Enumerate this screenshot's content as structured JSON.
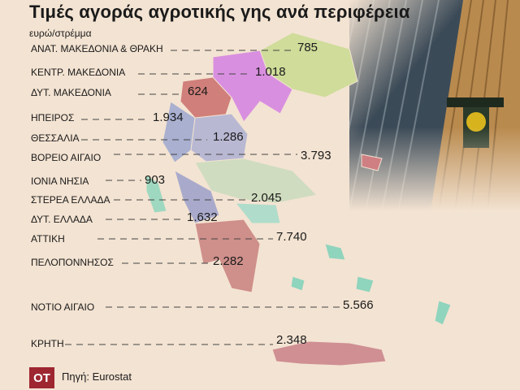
{
  "title": "Τιμές αγοράς αγροτικής γης ανά περιφέρεια",
  "unit": "ευρώ/στρέμμα",
  "regions": [
    {
      "name": "ΑΝΑΤ. ΜΑΚΕΔΟΝΙΑ & ΘΡΑΚΗ",
      "value": "785",
      "color": "#cfdc9a"
    },
    {
      "name": "ΚΕΝΤΡ. ΜΑΚΕΔΟΝΙΑ",
      "value": "1.018",
      "color": "#d98fe0"
    },
    {
      "name": "ΔΥΤ. ΜΑΚΕΔΟΝΙΑ",
      "value": "624",
      "color": "#d07f7a"
    },
    {
      "name": "ΗΠΕΙΡΟΣ",
      "value": "1.934",
      "color": "#a9b0d0"
    },
    {
      "name": "ΘΕΣΣΑΛΙΑ",
      "value": "1.286",
      "color": "#b9b8d3"
    },
    {
      "name": "ΒΟΡΕΙΟ ΑΙΓΑΙΟ",
      "value": "3.793",
      "color": "#cf7f82"
    },
    {
      "name": "ΙΟΝΙΑ ΝΗΣΙΑ",
      "value": "903",
      "color": "#9fd8c0"
    },
    {
      "name": "ΣΤΕΡΕΑ ΕΛΛΑΔΑ",
      "value": "2.045",
      "color": "#cfdcbf"
    },
    {
      "name": "ΔΥΤ. ΕΛΛΑΔΑ",
      "value": "1.632",
      "color": "#a9aacb"
    },
    {
      "name": "ΑΤΤΙΚΗ",
      "value": "7.740",
      "color": "#b0dccb"
    },
    {
      "name": "ΠΕΛΟΠΟΝΝΗΣΟΣ",
      "value": "2.282",
      "color": "#cf8f8a"
    },
    {
      "name": "ΝΟΤΙΟ ΑΙΓΑΙΟ",
      "value": "5.566",
      "color": "#8fd4bd"
    },
    {
      "name": "ΚΡΗΤΗ",
      "value": "2.348",
      "color": "#cf8f93"
    }
  ],
  "logo": "OT",
  "source": "Πηγή: Eurostat",
  "colors": {
    "background": "#f3e3d2",
    "logo": "#9d2630"
  }
}
